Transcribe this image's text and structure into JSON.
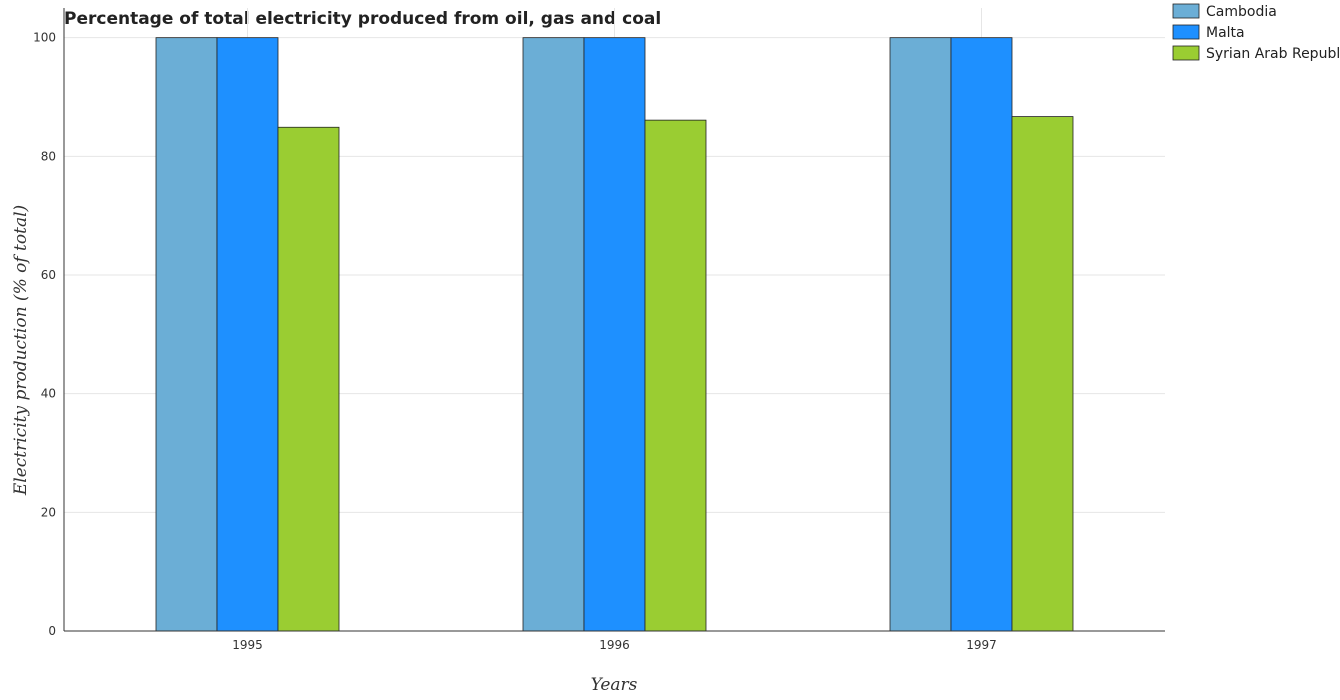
{
  "chart_data": {
    "type": "bar",
    "title": "Percentage of total electricity produced from oil, gas and coal",
    "xlabel": "Years",
    "ylabel": "Electricity production (% of total)",
    "categories": [
      "1995",
      "1996",
      "1997"
    ],
    "series": [
      {
        "name": "Cambodia",
        "color": "#6baed6",
        "values": [
          100,
          100,
          100
        ]
      },
      {
        "name": "Malta",
        "color": "#1e90ff",
        "values": [
          100,
          100,
          100
        ]
      },
      {
        "name": "Syrian Arab Republic",
        "color": "#9acd32",
        "values": [
          84.9,
          86.1,
          86.7
        ]
      }
    ],
    "ylim": [
      0,
      105
    ],
    "yticks": [
      0,
      20,
      40,
      60,
      80,
      100
    ],
    "grid": true,
    "legend_position": "top-right"
  }
}
